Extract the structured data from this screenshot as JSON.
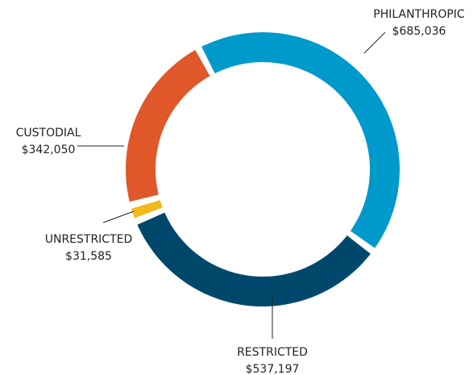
{
  "chart_data": {
    "type": "donut",
    "categories": [
      "PHILANTHROPIC",
      "RESTRICTED",
      "UNRESTRICTED",
      "CUSTODIAL"
    ],
    "values": [
      685036,
      537197,
      31585,
      342050
    ],
    "value_labels": [
      "$685,036",
      "$537,197",
      "$31,585",
      "$342,050"
    ],
    "colors": [
      "#0099cc",
      "#00486b",
      "#f2b81c",
      "#e0572a"
    ]
  }
}
